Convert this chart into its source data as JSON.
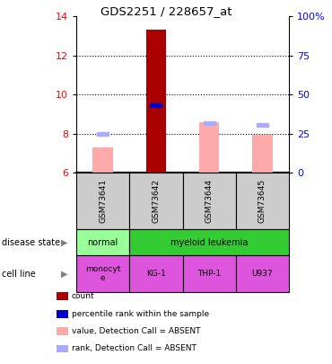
{
  "title": "GDS2251 / 228657_at",
  "samples": [
    "GSM73641",
    "GSM73642",
    "GSM73644",
    "GSM73645"
  ],
  "ylim_left": [
    6,
    14
  ],
  "ylim_right": [
    0,
    100
  ],
  "yticks_left": [
    6,
    8,
    10,
    12,
    14
  ],
  "yticks_right": [
    0,
    25,
    50,
    75,
    100
  ],
  "ytick_labels_right": [
    "0",
    "25",
    "50",
    "75",
    "100%"
  ],
  "bar_values": [
    7.3,
    13.3,
    8.6,
    7.95
  ],
  "bar_colors": [
    "#ffaaaa",
    "#aa0000",
    "#ffaaaa",
    "#ffaaaa"
  ],
  "bar_bottom": 6.0,
  "rank_values": [
    8.0,
    9.45,
    8.55,
    8.45
  ],
  "rank_colors": [
    "#aaaaff",
    "#0000cc",
    "#aaaaff",
    "#aaaaff"
  ],
  "disease_state_labels": [
    "normal",
    "myeloid leukemia"
  ],
  "disease_state_colors": [
    "#99ff99",
    "#33cc33"
  ],
  "cell_line_labels": [
    "monocyt\ne",
    "KG-1",
    "THP-1",
    "U937"
  ],
  "cell_line_color": "#dd55dd",
  "sample_header_color": "#cccccc",
  "legend_items": [
    {
      "color": "#aa0000",
      "label": "count"
    },
    {
      "color": "#0000cc",
      "label": "percentile rank within the sample"
    },
    {
      "color": "#ffaaaa",
      "label": "value, Detection Call = ABSENT"
    },
    {
      "color": "#aaaaff",
      "label": "rank, Detection Call = ABSENT"
    }
  ]
}
